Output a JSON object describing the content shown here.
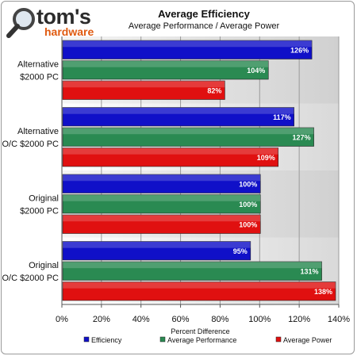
{
  "logo": {
    "main": "tom's",
    "sub": "hardware"
  },
  "chart_data": {
    "type": "bar",
    "orientation": "horizontal",
    "title": "Average Efficiency",
    "subtitle": "Average Performance / Average Power",
    "xlabel": "Percent Difference",
    "ylabel": "",
    "categories": [
      "Alternative\n$2000 PC",
      "Alternative\nO/C $2000 PC",
      "Original\n$2000 PC",
      "Original\nO/C $2000 PC"
    ],
    "series": [
      {
        "name": "Efficiency",
        "color": "#1010c8",
        "values": [
          126,
          117,
          100,
          95
        ]
      },
      {
        "name": "Average Performance",
        "color": "#2a8a52",
        "values": [
          104,
          127,
          100,
          131
        ]
      },
      {
        "name": "Average Power",
        "color": "#e01010",
        "values": [
          82,
          109,
          100,
          138
        ]
      }
    ],
    "value_suffix": "%",
    "xlim": [
      0,
      140
    ],
    "xticks": [
      0,
      20,
      40,
      60,
      80,
      100,
      120,
      140
    ],
    "tick_suffix": "%",
    "grid": true,
    "legend": "bottom"
  }
}
